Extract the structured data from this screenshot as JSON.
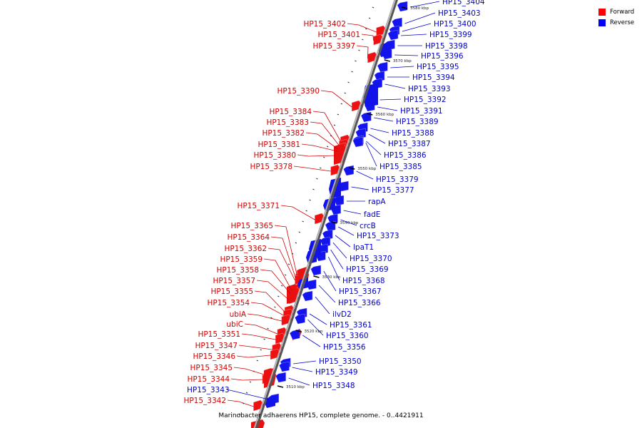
{
  "legend": {
    "forward_label": "Forward",
    "reverse_label": "Reverse",
    "forward_color": "#ff0000",
    "reverse_color": "#0000ff"
  },
  "caption": "Marinobacter adhaerens HP15, complete genome. - 0..4421911",
  "scale_labels": [
    "3580 kbp",
    "3570 kbp",
    "3560 kbp",
    "3550 kbp",
    "3540 kbp",
    "3530 kbp",
    "3520 kbp",
    "3510 kbp"
  ],
  "forward_genes": [
    "HP15_3402",
    "HP15_3401",
    "HP15_3397",
    "HP15_3390",
    "HP15_3384",
    "HP15_3383",
    "HP15_3382",
    "HP15_3381",
    "HP15_3380",
    "HP15_3378",
    "HP15_3371",
    "HP15_3365",
    "HP15_3364",
    "HP15_3362",
    "HP15_3359",
    "HP15_3358",
    "HP15_3357",
    "HP15_3355",
    "HP15_3354",
    "ubiA",
    "ubiC",
    "HP15_3351",
    "HP15_3347",
    "HP15_3346",
    "HP15_3345",
    "HP15_3344",
    "HP15_3342"
  ],
  "reverse_genes": [
    "HP15_3404",
    "HP15_3403",
    "HP15_3400",
    "HP15_3399",
    "HP15_3398",
    "HP15_3396",
    "HP15_3395",
    "HP15_3394",
    "HP15_3393",
    "HP15_3392",
    "HP15_3391",
    "HP15_3389",
    "HP15_3388",
    "HP15_3387",
    "HP15_3386",
    "HP15_3385",
    "HP15_3379",
    "HP15_3377",
    "rapA",
    "fadE",
    "crcB",
    "HP15_3373",
    "lpaT1",
    "HP15_3370",
    "HP15_3369",
    "HP15_3368",
    "HP15_3367",
    "HP15_3366",
    "ilvD2",
    "HP15_3361",
    "HP15_3360",
    "HP15_3356",
    "HP15_3350",
    "HP15_3349",
    "HP15_3348",
    "HP15_3343"
  ],
  "left_reverse_labels": [
    "HP15_3343"
  ],
  "styles": {
    "axis_color": "#555555",
    "forward_text": "#d00000",
    "reverse_text": "#0000d0"
  }
}
